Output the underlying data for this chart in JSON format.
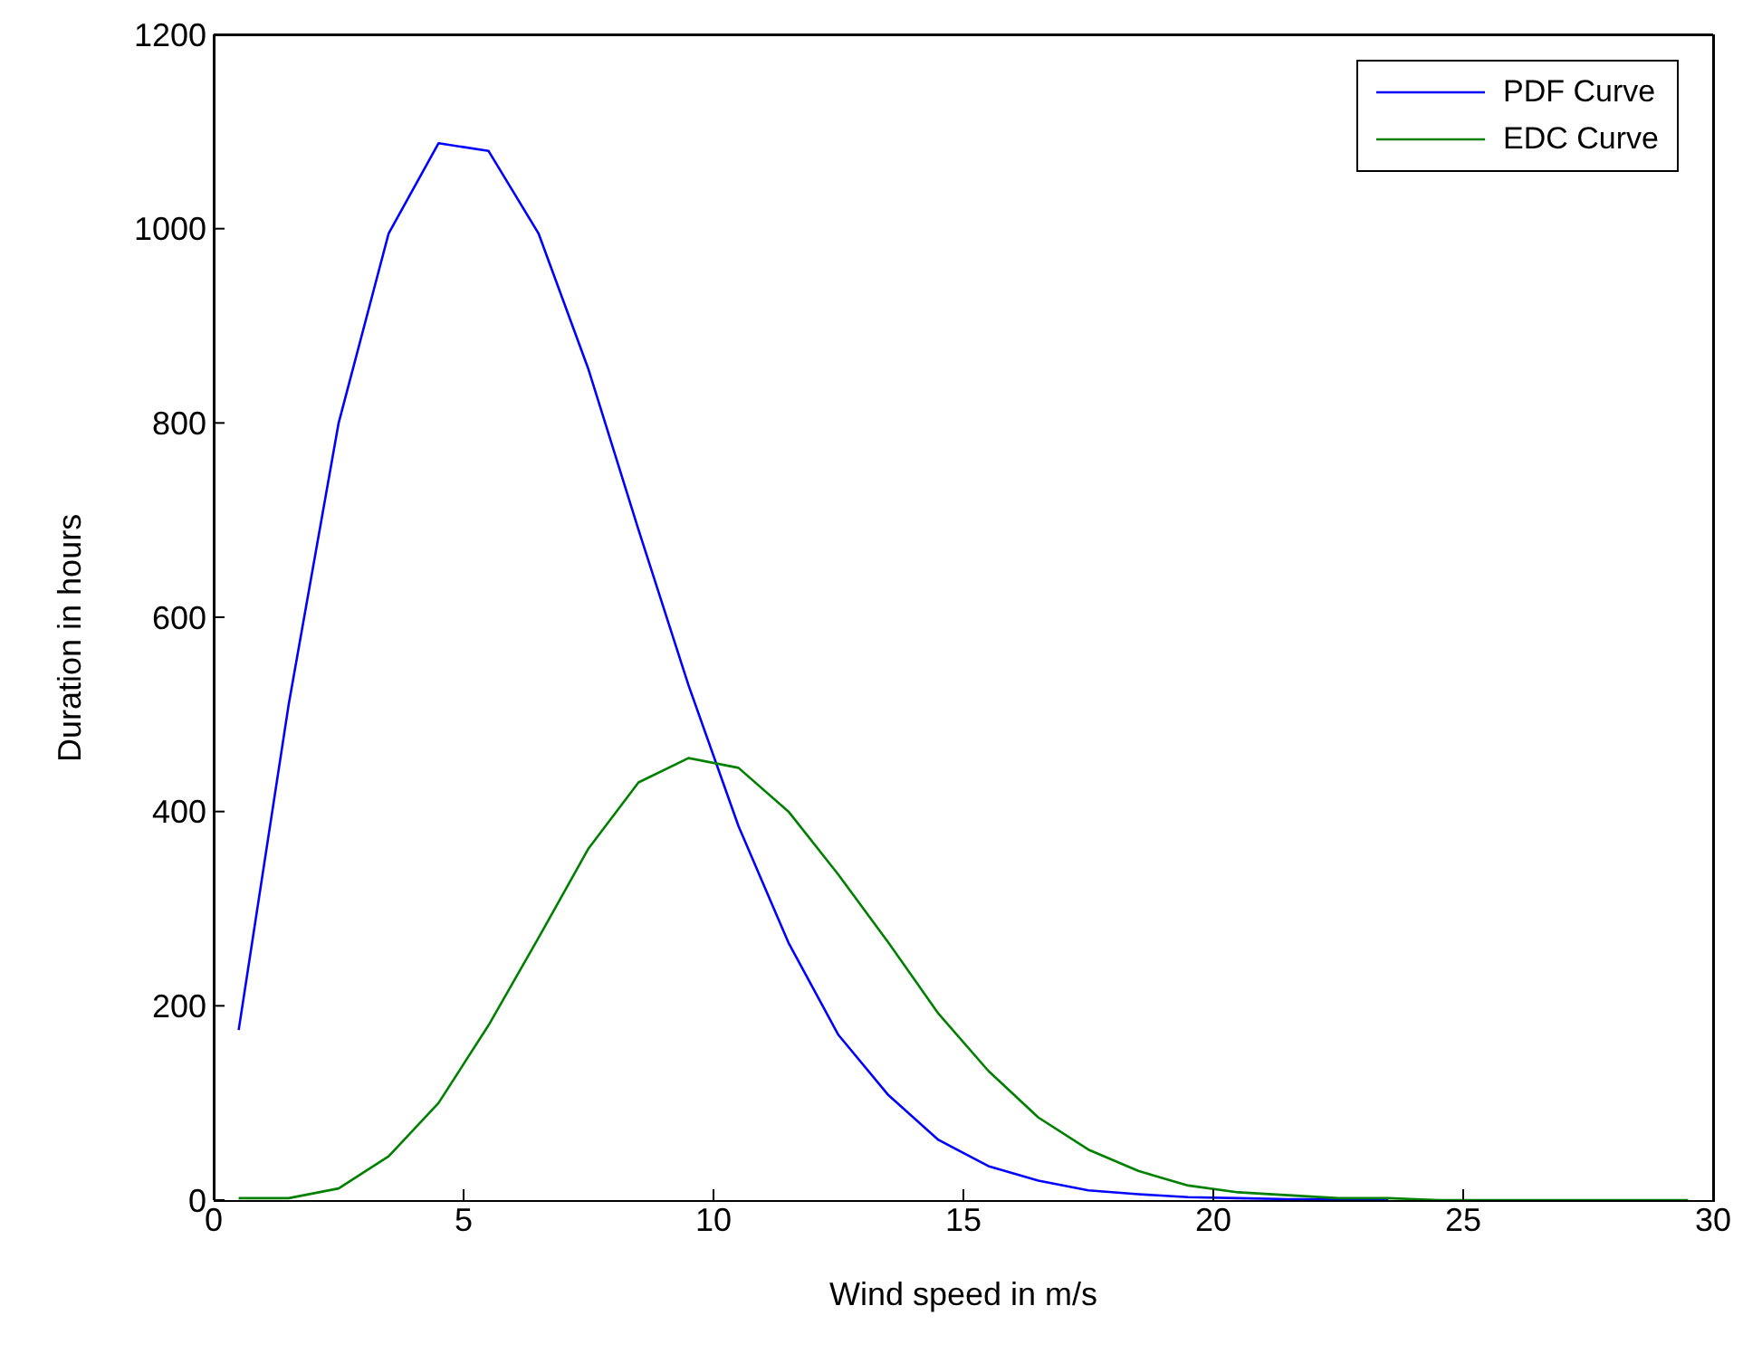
{
  "chart_data": {
    "type": "line",
    "xlabel": "Wind speed in m/s",
    "ylabel": "Duration in hours",
    "x": [
      0.5,
      1.5,
      2.5,
      3.5,
      4.5,
      5.5,
      6.5,
      7.5,
      8.5,
      9.5,
      10.5,
      11.5,
      12.5,
      13.5,
      14.5,
      15.5,
      16.5,
      17.5,
      18.5,
      19.5,
      20.5,
      21.5,
      22.5,
      23.5,
      24.5,
      25.5,
      26.5,
      27.5,
      28.5,
      29.5
    ],
    "series": [
      {
        "name": "PDF Curve",
        "color": "#0000ff",
        "values": [
          175,
          510,
          800,
          995,
          1088,
          1080,
          995,
          855,
          690,
          530,
          385,
          265,
          170,
          108,
          62,
          35,
          20,
          10,
          6,
          3,
          2,
          1,
          1,
          0,
          null,
          null,
          null,
          null,
          null,
          null
        ]
      },
      {
        "name": "EDC Curve",
        "color": "#008000",
        "values": [
          2,
          2,
          12,
          45,
          100,
          180,
          270,
          362,
          430,
          455,
          445,
          400,
          335,
          265,
          192,
          133,
          85,
          52,
          30,
          15,
          8,
          5,
          2,
          2,
          0,
          0,
          0,
          0,
          0,
          0
        ]
      }
    ],
    "xlim": [
      0,
      30
    ],
    "xticks": [
      0,
      5,
      10,
      15,
      20,
      25,
      30
    ],
    "ylim": [
      0,
      1200
    ],
    "yticks": [
      0,
      200,
      400,
      600,
      800,
      1000,
      1200
    ],
    "grid": false,
    "legend": "top right",
    "marker": "none",
    "line_style": "solid"
  }
}
